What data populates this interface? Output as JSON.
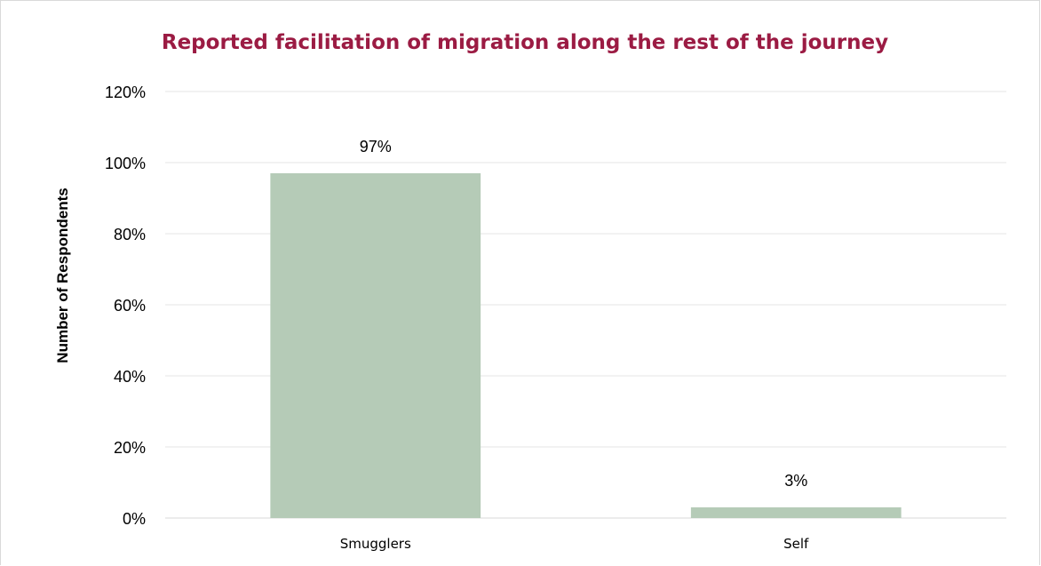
{
  "chart_data": {
    "type": "bar",
    "title": "Reported facilitation of migration along the rest of the journey",
    "ylabel": "Number of Respondents",
    "xlabel": "",
    "categories": [
      "Smugglers",
      "Self"
    ],
    "values": [
      97,
      3
    ],
    "value_labels": [
      "97%",
      "3%"
    ],
    "ylim": [
      0,
      120
    ],
    "yticks": [
      0,
      20,
      40,
      60,
      80,
      100,
      120
    ],
    "ytick_labels": [
      "0%",
      "20%",
      "40%",
      "60%",
      "80%",
      "100%",
      "120%"
    ],
    "grid": true,
    "legend": "none",
    "colors": {
      "bar": "#b5cbb7",
      "title": "#9b1b43",
      "gridline": "#e6e6e6"
    }
  }
}
